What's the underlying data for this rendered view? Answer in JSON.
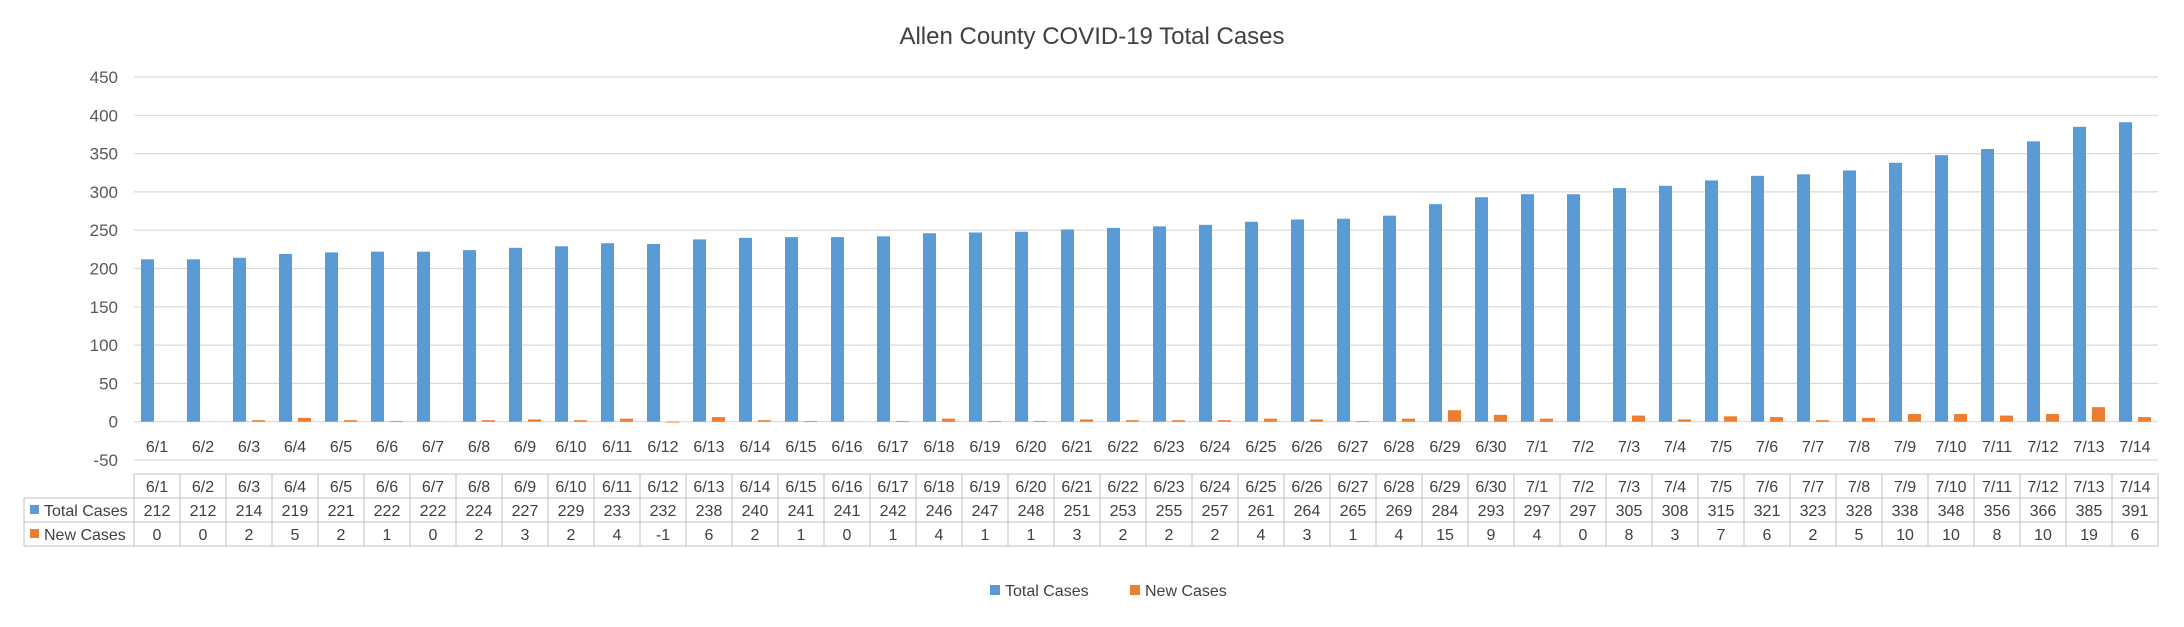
{
  "chart_data": {
    "type": "bar",
    "title": "Allen County COVID-19 Total Cases",
    "categories": [
      "6/1",
      "6/2",
      "6/3",
      "6/4",
      "6/5",
      "6/6",
      "6/7",
      "6/8",
      "6/9",
      "6/10",
      "6/11",
      "6/12",
      "6/13",
      "6/14",
      "6/15",
      "6/16",
      "6/17",
      "6/18",
      "6/19",
      "6/20",
      "6/21",
      "6/22",
      "6/23",
      "6/24",
      "6/25",
      "6/26",
      "6/27",
      "6/28",
      "6/29",
      "6/30",
      "7/1",
      "7/2",
      "7/3",
      "7/4",
      "7/5",
      "7/6",
      "7/7",
      "7/8",
      "7/9",
      "7/10",
      "7/11",
      "7/12",
      "7/13",
      "7/14"
    ],
    "series": [
      {
        "name": "Total Cases",
        "color": "#5B9BD5",
        "values": [
          212,
          212,
          214,
          219,
          221,
          222,
          222,
          224,
          227,
          229,
          233,
          232,
          238,
          240,
          241,
          241,
          242,
          246,
          247,
          248,
          251,
          253,
          255,
          257,
          261,
          264,
          265,
          269,
          284,
          293,
          297,
          297,
          305,
          308,
          315,
          321,
          323,
          328,
          338,
          348,
          356,
          366,
          385,
          391
        ]
      },
      {
        "name": "New Cases",
        "color": "#ED7D31",
        "values": [
          0,
          0,
          2,
          5,
          2,
          1,
          0,
          2,
          3,
          2,
          4,
          -1,
          6,
          2,
          1,
          0,
          1,
          4,
          1,
          1,
          3,
          2,
          2,
          2,
          4,
          3,
          1,
          4,
          15,
          9,
          4,
          0,
          8,
          3,
          7,
          6,
          2,
          5,
          10,
          10,
          8,
          10,
          19,
          6
        ]
      }
    ],
    "ylim": [
      -50,
      450
    ],
    "y_ticks": [
      -50,
      0,
      50,
      100,
      150,
      200,
      250,
      300,
      350,
      400,
      450
    ],
    "grid": true,
    "legend_position": "bottom",
    "data_table": true
  }
}
